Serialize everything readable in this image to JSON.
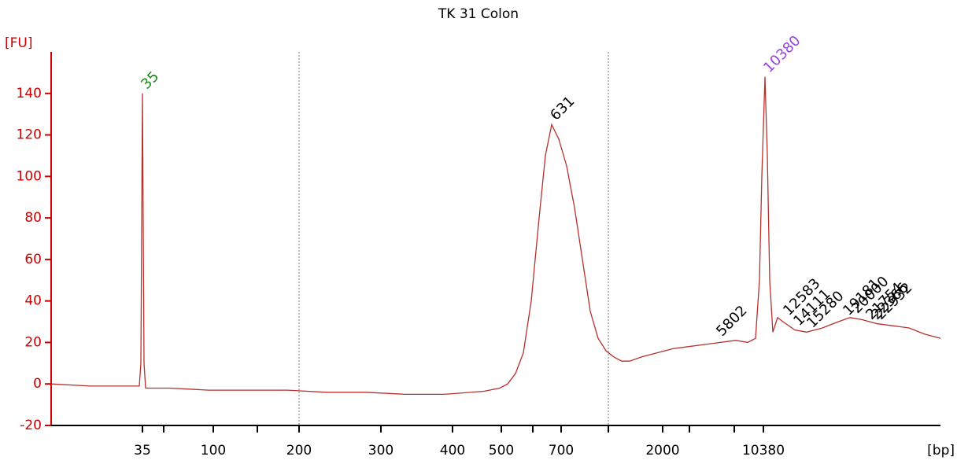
{
  "chart_data": {
    "type": "line",
    "title": "TK 31 Colon",
    "y_label": "[FU]",
    "x_label": "[bp]",
    "color": "#b5312c",
    "axis_color": "#d00000",
    "ylim": [
      -20,
      160
    ],
    "yticks": [
      -20,
      0,
      20,
      40,
      60,
      80,
      100,
      120,
      140
    ],
    "xlim": [
      0,
      113
    ],
    "xticks": [
      {
        "value": 11.6,
        "label": "35"
      },
      {
        "value": 14.3,
        "label": null
      },
      {
        "value": 20.6,
        "label": "100"
      },
      {
        "value": 26.2,
        "label": null
      },
      {
        "value": 31.5,
        "label": "200"
      },
      {
        "value": 41.9,
        "label": "300"
      },
      {
        "value": 51.0,
        "label": "400"
      },
      {
        "value": 57.2,
        "label": "500"
      },
      {
        "value": 61.2,
        "label": null
      },
      {
        "value": 64.8,
        "label": "700"
      },
      {
        "value": 70.8,
        "label": null
      },
      {
        "value": 77.7,
        "label": "2000"
      },
      {
        "value": 81.1,
        "label": null
      },
      {
        "value": 86.8,
        "label": null
      },
      {
        "value": 90.5,
        "label": "10380"
      }
    ],
    "vlines": [
      31.5,
      70.8
    ],
    "x": [
      0,
      5,
      10,
      11.2,
      11.4,
      11.6,
      11.8,
      12.0,
      15,
      20,
      25,
      30,
      35,
      40,
      45,
      50,
      55,
      57,
      58,
      59,
      60,
      61,
      62,
      62.8,
      63.6,
      64.5,
      65.5,
      66.5,
      67.5,
      68.5,
      69.5,
      70.5,
      71.5,
      72.5,
      73.5,
      75,
      77,
      79,
      81,
      83,
      85,
      87,
      88.5,
      89.5,
      90.0,
      90.3,
      90.7,
      91.0,
      91.3,
      91.7,
      92.3,
      93,
      94.5,
      96,
      98,
      100,
      101.5,
      103,
      105,
      107,
      109,
      111,
      113
    ],
    "values": [
      0,
      -1,
      -1,
      -1,
      10,
      140,
      10,
      -2,
      -2,
      -3,
      -3,
      -3,
      -4,
      -4,
      -5,
      -5,
      -3.5,
      -2,
      0,
      5,
      15,
      40,
      80,
      110,
      125,
      118,
      105,
      85,
      60,
      35,
      22,
      16,
      13,
      11,
      11,
      13,
      15,
      17,
      18,
      19,
      20,
      21,
      20,
      22,
      50,
      100,
      148,
      110,
      50,
      25,
      32,
      30,
      26,
      25,
      27,
      30,
      32,
      31,
      29,
      28,
      27,
      24,
      22
    ],
    "annotations": [
      {
        "text": "35",
        "x": 11.6,
        "y": 140,
        "color": "#1a8a1a"
      },
      {
        "text": "631",
        "x": 63.6,
        "y": 125,
        "color": "#000000"
      },
      {
        "text": "10380",
        "x": 90.7,
        "y": 148,
        "color": "#9b3fe0"
      },
      {
        "text": "5802",
        "x": 84.7,
        "y": 21,
        "color": "#000000"
      },
      {
        "text": "12583",
        "x": 93.2,
        "y": 31,
        "color": "#000000"
      },
      {
        "text": "14111",
        "x": 94.5,
        "y": 26,
        "color": "#000000"
      },
      {
        "text": "15280",
        "x": 96.2,
        "y": 25,
        "color": "#000000"
      },
      {
        "text": "19181",
        "x": 100.8,
        "y": 31,
        "color": "#000000"
      },
      {
        "text": "20000",
        "x": 101.9,
        "y": 32,
        "color": "#000000"
      },
      {
        "text": "21754",
        "x": 103.7,
        "y": 29,
        "color": "#000000"
      },
      {
        "text": "22366",
        "x": 104.4,
        "y": 29,
        "color": "#000000"
      },
      {
        "text": "22932",
        "x": 104.9,
        "y": 29,
        "color": "#000000"
      }
    ]
  }
}
